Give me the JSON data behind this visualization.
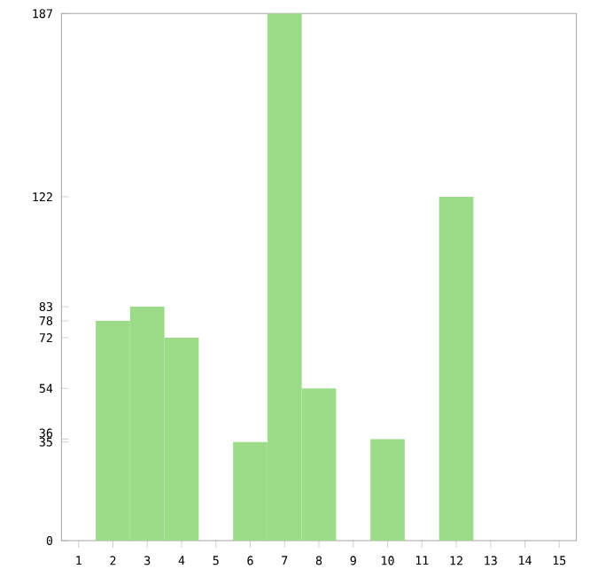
{
  "chart_data": {
    "type": "bar",
    "categories": [
      "1",
      "2",
      "3",
      "4",
      "5",
      "6",
      "7",
      "8",
      "9",
      "10",
      "11",
      "12",
      "13",
      "14",
      "15"
    ],
    "values": [
      0,
      78,
      83,
      72,
      0,
      35,
      187,
      54,
      0,
      36,
      0,
      122,
      0,
      0,
      0
    ],
    "color": "#9cdc88",
    "ylim": [
      0,
      187
    ],
    "yticks": [
      0,
      35,
      36,
      54,
      72,
      78,
      83,
      122,
      187
    ],
    "grid": false
  }
}
